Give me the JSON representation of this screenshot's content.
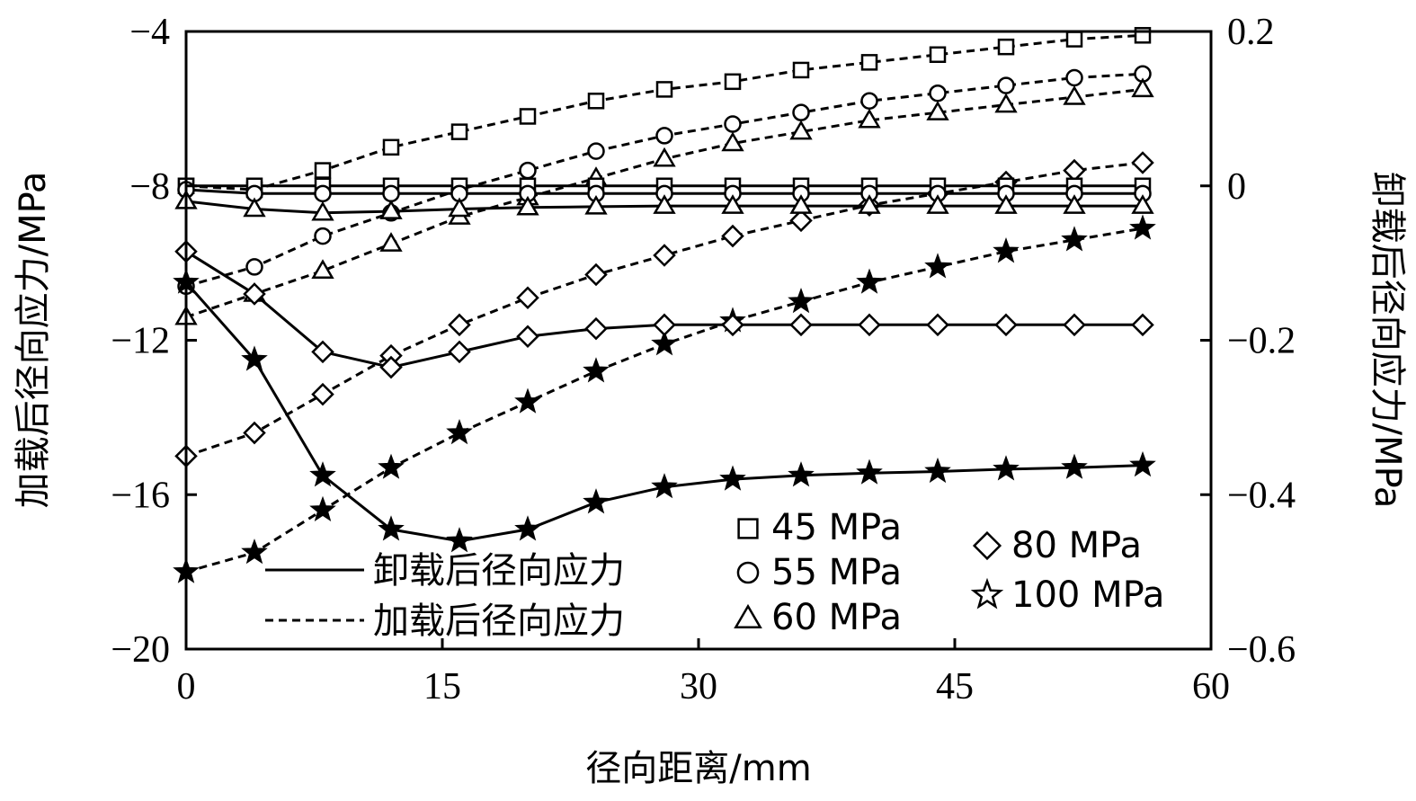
{
  "chart_data": {
    "type": "line",
    "title": "",
    "xlabel": "径向距离/mm",
    "ylabel_left": "加载后径向应力/MPa",
    "ylabel_right": "卸载后径向应力/MPa",
    "xlim": [
      0,
      60
    ],
    "ylim_left": [
      -20,
      -4
    ],
    "ylim_right": [
      -0.6,
      0.2
    ],
    "x_ticks": [
      "0",
      "15",
      "30",
      "45",
      "60"
    ],
    "y_left_ticks": [
      "−20",
      "−16",
      "−12",
      "−8",
      "−4"
    ],
    "y_right_ticks": [
      "−0.6",
      "−0.4",
      "−0.2",
      "0",
      "0.2"
    ],
    "grid": false,
    "x": [
      0,
      4,
      8,
      12,
      16,
      20,
      24,
      28,
      32,
      36,
      40,
      44,
      48,
      52,
      56
    ],
    "line_styles": [
      {
        "label": "卸载后径向应力",
        "dash": "solid",
        "axis": "right"
      },
      {
        "label": "加载后径向应力",
        "dash": "dashed",
        "axis": "left"
      }
    ],
    "pressures": [
      {
        "label": "45 MPa",
        "marker": "square"
      },
      {
        "label": "55 MPa",
        "marker": "circle"
      },
      {
        "label": "60 MPa",
        "marker": "triangle"
      },
      {
        "label": "80 MPa",
        "marker": "diamond"
      },
      {
        "label": "100 MPa",
        "marker": "star"
      }
    ],
    "series": [
      {
        "pressure": "45 MPa",
        "kind": "加载后径向应力",
        "axis": "left",
        "marker": "square",
        "dash": "dashed",
        "values": [
          -8.0,
          -8.1,
          -7.6,
          -7.0,
          -6.6,
          -6.2,
          -5.8,
          -5.5,
          -5.3,
          -5.0,
          -4.8,
          -4.6,
          -4.4,
          -4.2,
          -4.1
        ]
      },
      {
        "pressure": "55 MPa",
        "kind": "加载后径向应力",
        "axis": "left",
        "marker": "circle",
        "dash": "dashed",
        "values": [
          -10.6,
          -10.1,
          -9.3,
          -8.7,
          -8.1,
          -7.6,
          -7.1,
          -6.7,
          -6.4,
          -6.1,
          -5.8,
          -5.6,
          -5.4,
          -5.2,
          -5.1
        ]
      },
      {
        "pressure": "60 MPa",
        "kind": "加载后径向应力",
        "axis": "left",
        "marker": "triangle",
        "dash": "dashed",
        "values": [
          -11.4,
          -10.8,
          -10.2,
          -9.5,
          -8.8,
          -8.3,
          -7.8,
          -7.3,
          -6.9,
          -6.6,
          -6.3,
          -6.1,
          -5.9,
          -5.7,
          -5.5
        ]
      },
      {
        "pressure": "80 MPa",
        "kind": "加载后径向应力",
        "axis": "left",
        "marker": "diamond",
        "dash": "dashed",
        "values": [
          -15.0,
          -14.4,
          -13.4,
          -12.4,
          -11.6,
          -10.9,
          -10.3,
          -9.8,
          -9.3,
          -8.9,
          -8.5,
          -8.2,
          -7.9,
          -7.6,
          -7.4
        ]
      },
      {
        "pressure": "100 MPa",
        "kind": "加载后径向应力",
        "axis": "left",
        "marker": "star",
        "dash": "dashed",
        "values": [
          -18.0,
          -17.5,
          -16.4,
          -15.3,
          -14.4,
          -13.6,
          -12.8,
          -12.1,
          -11.5,
          -11.0,
          -10.5,
          -10.1,
          -9.7,
          -9.4,
          -9.1
        ]
      },
      {
        "pressure": "45 MPa",
        "kind": "卸载后径向应力",
        "axis": "right",
        "marker": "square",
        "dash": "solid",
        "values": [
          0.0,
          0.0,
          0.0,
          0.0,
          0.0,
          0.0,
          0.0,
          0.0,
          0.0,
          0.0,
          0.0,
          0.0,
          0.0,
          0.0,
          0.0
        ]
      },
      {
        "pressure": "55 MPa",
        "kind": "卸载后径向应力",
        "axis": "right",
        "marker": "circle",
        "dash": "solid",
        "values": [
          -0.005,
          -0.01,
          -0.01,
          -0.01,
          -0.01,
          -0.01,
          -0.01,
          -0.01,
          -0.01,
          -0.01,
          -0.01,
          -0.01,
          -0.01,
          -0.01,
          -0.01
        ]
      },
      {
        "pressure": "60 MPa",
        "kind": "卸载后径向应力",
        "axis": "right",
        "marker": "triangle",
        "dash": "solid",
        "values": [
          -0.02,
          -0.03,
          -0.035,
          -0.033,
          -0.03,
          -0.028,
          -0.027,
          -0.026,
          -0.026,
          -0.026,
          -0.026,
          -0.026,
          -0.026,
          -0.026,
          -0.026
        ]
      },
      {
        "pressure": "80 MPa",
        "kind": "卸载后径向应力",
        "axis": "right",
        "marker": "diamond",
        "dash": "solid",
        "values": [
          -0.085,
          -0.14,
          -0.215,
          -0.235,
          -0.215,
          -0.195,
          -0.185,
          -0.18,
          -0.18,
          -0.18,
          -0.18,
          -0.18,
          -0.18,
          -0.18,
          -0.18
        ]
      },
      {
        "pressure": "100 MPa",
        "kind": "卸载后径向应力",
        "axis": "right",
        "marker": "star",
        "dash": "solid",
        "values": [
          -0.125,
          -0.225,
          -0.375,
          -0.445,
          -0.46,
          -0.445,
          -0.41,
          -0.39,
          -0.38,
          -0.375,
          -0.372,
          -0.37,
          -0.367,
          -0.365,
          -0.362
        ]
      }
    ]
  }
}
